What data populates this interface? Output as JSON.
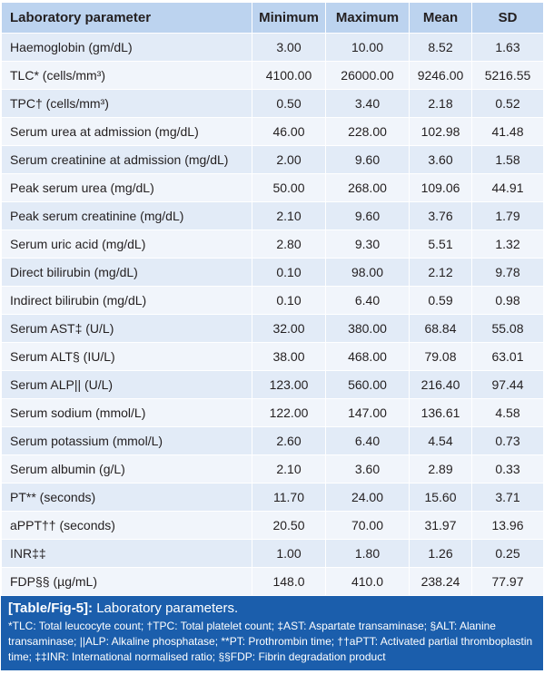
{
  "table": {
    "headers": [
      "Laboratory parameter",
      "Minimum",
      "Maximum",
      "Mean",
      "SD"
    ],
    "rows": [
      {
        "name": "Haemoglobin (gm/dL)",
        "min": "3.00",
        "max": "10.00",
        "mean": "8.52",
        "sd": "1.63"
      },
      {
        "name": "TLC* (cells/mm³)",
        "min": "4100.00",
        "max": "26000.00",
        "mean": "9246.00",
        "sd": "5216.55"
      },
      {
        "name": "TPC† (cells/mm³)",
        "min": "0.50",
        "max": "3.40",
        "mean": "2.18",
        "sd": "0.52"
      },
      {
        "name": "Serum urea at admission (mg/dL)",
        "min": "46.00",
        "max": "228.00",
        "mean": "102.98",
        "sd": "41.48"
      },
      {
        "name": "Serum creatinine at admission (mg/dL)",
        "min": "2.00",
        "max": "9.60",
        "mean": "3.60",
        "sd": "1.58"
      },
      {
        "name": "Peak serum urea (mg/dL)",
        "min": "50.00",
        "max": "268.00",
        "mean": "109.06",
        "sd": "44.91"
      },
      {
        "name": "Peak serum creatinine (mg/dL)",
        "min": "2.10",
        "max": "9.60",
        "mean": "3.76",
        "sd": "1.79"
      },
      {
        "name": "Serum uric acid (mg/dL)",
        "min": "2.80",
        "max": "9.30",
        "mean": "5.51",
        "sd": "1.32"
      },
      {
        "name": "Direct bilirubin (mg/dL)",
        "min": "0.10",
        "max": "98.00",
        "mean": "2.12",
        "sd": "9.78"
      },
      {
        "name": "Indirect bilirubin (mg/dL)",
        "min": "0.10",
        "max": "6.40",
        "mean": "0.59",
        "sd": "0.98"
      },
      {
        "name": "Serum AST‡ (U/L)",
        "min": "32.00",
        "max": "380.00",
        "mean": "68.84",
        "sd": "55.08"
      },
      {
        "name": "Serum ALT§ (IU/L)",
        "min": "38.00",
        "max": "468.00",
        "mean": "79.08",
        "sd": "63.01"
      },
      {
        "name": "Serum ALP|| (U/L)",
        "min": "123.00",
        "max": "560.00",
        "mean": "216.40",
        "sd": "97.44"
      },
      {
        "name": "Serum sodium (mmol/L)",
        "min": "122.00",
        "max": "147.00",
        "mean": "136.61",
        "sd": "4.58"
      },
      {
        "name": "Serum potassium (mmol/L)",
        "min": "2.60",
        "max": "6.40",
        "mean": "4.54",
        "sd": "0.73"
      },
      {
        "name": "Serum albumin (g/L)",
        "min": "2.10",
        "max": "3.60",
        "mean": "2.89",
        "sd": "0.33"
      },
      {
        "name": "PT** (seconds)",
        "min": "11.70",
        "max": "24.00",
        "mean": "15.60",
        "sd": "3.71"
      },
      {
        "name": "aPPT†† (seconds)",
        "min": "20.50",
        "max": "70.00",
        "mean": "31.97",
        "sd": "13.96"
      },
      {
        "name": "INR‡‡",
        "min": "1.00",
        "max": "1.80",
        "mean": "1.26",
        "sd": "0.25"
      },
      {
        "name": "FDP§§ (µg/mL)",
        "min": "148.0",
        "max": "410.0",
        "mean": "238.24",
        "sd": "77.97"
      }
    ]
  },
  "caption": {
    "label": "[Table/Fig-5]:",
    "title": " Laboratory parameters.",
    "note": "*TLC: Total leucocyte count; †TPC: Total platelet count; ‡AST: Aspartate transaminase; §ALT: Alanine transaminase; ||ALP: Alkaline phosphatase; **PT: Prothrombin time; ††aPTT: Activated partial thromboplastin time; ‡‡INR: International normalised ratio; §§FDP: Fibrin degradation product"
  },
  "colors": {
    "header_bg": "#bcd3ef",
    "row_odd": "#e2ebf7",
    "row_even": "#f1f5fb",
    "caption_bg": "#1b5eac"
  }
}
